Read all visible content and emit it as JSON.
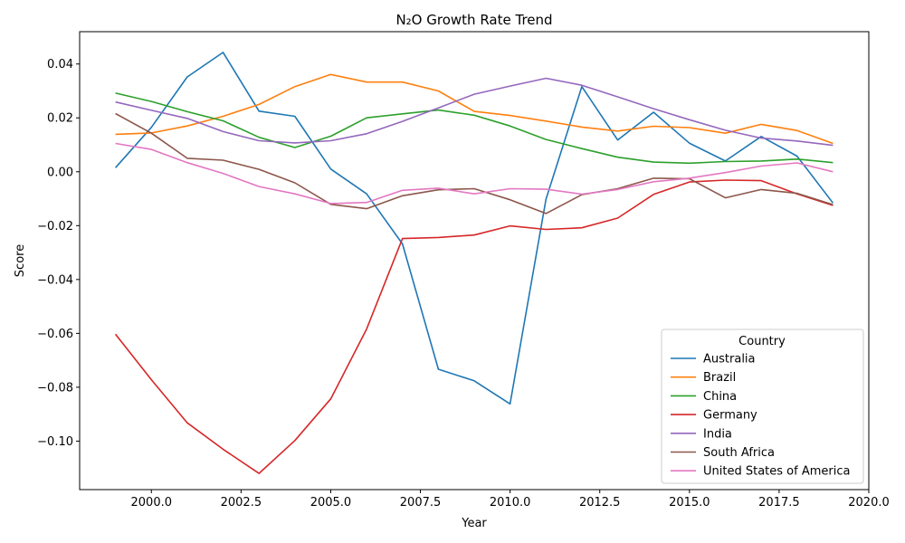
{
  "chart_data": {
    "type": "line",
    "title": "N₂O Growth Rate Trend",
    "xlabel": "Year",
    "ylabel": "Score",
    "xlim": [
      1998.0,
      2020.0
    ],
    "ylim": [
      -0.118,
      0.052
    ],
    "x_ticks": [
      2000.0,
      2002.5,
      2005.0,
      2007.5,
      2010.0,
      2012.5,
      2015.0,
      2017.5,
      2020.0
    ],
    "x_tick_labels": [
      "2000.0",
      "2002.5",
      "2005.0",
      "2007.5",
      "2010.0",
      "2012.5",
      "2015.0",
      "2017.5",
      "2020.0"
    ],
    "y_ticks": [
      -0.1,
      -0.08,
      -0.06,
      -0.04,
      -0.02,
      0.0,
      0.02,
      0.04
    ],
    "y_tick_labels": [
      "−0.10",
      "−0.08",
      "−0.06",
      "−0.04",
      "−0.02",
      "0.00",
      "0.02",
      "0.04"
    ],
    "grid": false,
    "legend": {
      "title": "Country",
      "position": "lower-right"
    },
    "x": [
      1999,
      2000,
      2001,
      2002,
      2003,
      2004,
      2005,
      2006,
      2007,
      2008,
      2009,
      2010,
      2011,
      2012,
      2013,
      2014,
      2015,
      2016,
      2017,
      2018,
      2019
    ],
    "series": [
      {
        "name": "Australia",
        "color": "#1f77b4",
        "values": [
          0.0015,
          0.0165,
          0.0352,
          0.0443,
          0.0225,
          0.0206,
          0.001,
          -0.0082,
          -0.0268,
          -0.0733,
          -0.0776,
          -0.0862,
          -0.0102,
          0.0316,
          0.0118,
          0.0221,
          0.0106,
          0.004,
          0.0131,
          0.0058,
          -0.0116
        ]
      },
      {
        "name": "Brazil",
        "color": "#ff7f0e",
        "values": [
          0.0139,
          0.0144,
          0.017,
          0.0206,
          0.025,
          0.0316,
          0.0361,
          0.0333,
          0.0333,
          0.03,
          0.0224,
          0.0209,
          0.0188,
          0.0166,
          0.0151,
          0.0169,
          0.0164,
          0.0143,
          0.0176,
          0.0153,
          0.0105
        ]
      },
      {
        "name": "China",
        "color": "#2ca02c",
        "values": [
          0.0292,
          0.0261,
          0.0223,
          0.0189,
          0.0128,
          0.009,
          0.0132,
          0.02,
          0.0215,
          0.0229,
          0.021,
          0.017,
          0.012,
          0.0086,
          0.0054,
          0.0036,
          0.0032,
          0.0038,
          0.004,
          0.0047,
          0.0034
        ]
      },
      {
        "name": "Germany",
        "color": "#d62728",
        "values": [
          -0.0603,
          -0.0772,
          -0.0932,
          -0.103,
          -0.112,
          -0.0998,
          -0.0843,
          -0.0584,
          -0.0248,
          -0.0244,
          -0.0235,
          -0.0201,
          -0.0214,
          -0.0208,
          -0.0172,
          -0.0084,
          -0.0038,
          -0.0031,
          -0.0033,
          -0.0082,
          -0.0125
        ]
      },
      {
        "name": "India",
        "color": "#9467bd",
        "values": [
          0.0259,
          0.0228,
          0.0198,
          0.0149,
          0.0115,
          0.0107,
          0.0115,
          0.0141,
          0.0187,
          0.0237,
          0.0288,
          0.0318,
          0.0347,
          0.0321,
          0.0278,
          0.0234,
          0.0193,
          0.0154,
          0.0125,
          0.0114,
          0.0098
        ]
      },
      {
        "name": "South Africa",
        "color": "#8c564b",
        "values": [
          0.0216,
          0.0143,
          0.005,
          0.0043,
          0.0009,
          -0.0041,
          -0.0121,
          -0.0137,
          -0.0089,
          -0.0067,
          -0.0063,
          -0.0104,
          -0.0155,
          -0.0085,
          -0.0063,
          -0.0024,
          -0.0026,
          -0.0097,
          -0.0066,
          -0.008,
          -0.0122
        ]
      },
      {
        "name": "United States of America",
        "color": "#e377c2",
        "values": [
          0.0105,
          0.0083,
          0.0034,
          -0.0006,
          -0.0055,
          -0.0082,
          -0.0118,
          -0.0114,
          -0.0069,
          -0.0061,
          -0.0082,
          -0.0063,
          -0.0065,
          -0.0083,
          -0.0066,
          -0.0037,
          -0.0024,
          -0.0003,
          0.0021,
          0.0033,
          0.0
        ]
      }
    ]
  }
}
